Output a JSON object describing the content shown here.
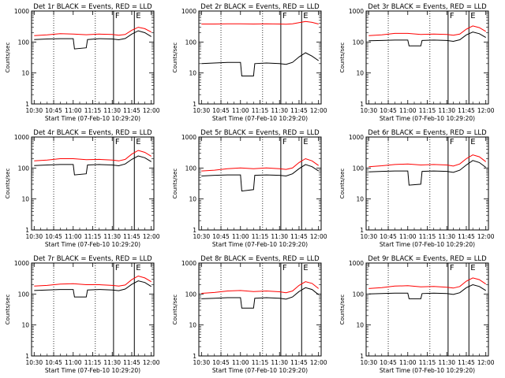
{
  "figure": {
    "xtick_labels": [
      "10:30",
      "10:45",
      "11:00",
      "11:15",
      "11:30",
      "11:45",
      "12:00"
    ],
    "xlabel": "Start Time (07-Feb-10 10:29:20)",
    "ylabel": "Counts/sec",
    "ytick_labels": [
      "1",
      "10",
      "100",
      "1000"
    ],
    "markers": [
      "F",
      "E"
    ]
  },
  "colors": {
    "events": "#000000",
    "lld": "#ff0000",
    "axes": "#000000"
  },
  "chart_data": [
    {
      "type": "line",
      "title": "Det 1r BLACK = Events, RED = LLD",
      "xlabel": "Start Time (07-Feb-10 10:29:20)",
      "ylabel": "Counts/sec",
      "xlim_min": [
        -2,
        92
      ],
      "ylim": [
        1,
        1000
      ],
      "yscale": "log",
      "dotted_vlines_min": [
        15,
        47
      ],
      "solid_vlines_min": [
        61,
        77
      ],
      "vline_labels": {
        "61": "F",
        "77": "E"
      },
      "series": [
        {
          "name": "Events",
          "color": "#000000",
          "x": [
            0,
            10,
            20,
            30,
            31,
            40,
            41,
            50,
            60,
            65,
            70,
            75,
            80,
            85,
            90
          ],
          "values": [
            120,
            125,
            128,
            128,
            60,
            65,
            120,
            128,
            125,
            118,
            130,
            180,
            230,
            200,
            150
          ]
        },
        {
          "name": "LLD",
          "color": "#ff0000",
          "x": [
            0,
            10,
            20,
            30,
            40,
            50,
            60,
            65,
            70,
            75,
            80,
            85,
            90
          ],
          "values": [
            160,
            170,
            185,
            180,
            172,
            180,
            175,
            165,
            175,
            240,
            300,
            270,
            210
          ]
        }
      ]
    },
    {
      "type": "line",
      "title": "Det 2r BLACK = Events, RED = LLD",
      "xlabel": "Start Time (07-Feb-10 10:29:20)",
      "ylabel": "Counts/sec",
      "xlim_min": [
        -2,
        92
      ],
      "ylim": [
        1,
        1000
      ],
      "yscale": "log",
      "dotted_vlines_min": [
        15,
        47
      ],
      "solid_vlines_min": [
        61,
        77
      ],
      "vline_labels": {
        "61": "F",
        "77": "E"
      },
      "series": [
        {
          "name": "Events",
          "color": "#000000",
          "x": [
            0,
            10,
            20,
            30,
            31,
            40,
            41,
            50,
            60,
            65,
            70,
            75,
            80,
            85,
            90
          ],
          "values": [
            20,
            21,
            22,
            22,
            8,
            8,
            20,
            21,
            20,
            19,
            22,
            33,
            45,
            35,
            25
          ]
        },
        {
          "name": "LLD",
          "color": "#ff0000",
          "x": [
            0,
            10,
            20,
            30,
            40,
            50,
            60,
            65,
            70,
            75,
            80,
            85,
            90
          ],
          "values": [
            380,
            380,
            385,
            385,
            380,
            385,
            380,
            375,
            385,
            420,
            460,
            430,
            380
          ]
        }
      ]
    },
    {
      "type": "line",
      "title": "Det 3r BLACK = Events, RED = LLD",
      "xlabel": "Start Time (07-Feb-10 10:29:20)",
      "ylabel": "Counts/sec",
      "xlim_min": [
        -2,
        92
      ],
      "ylim": [
        1,
        1000
      ],
      "yscale": "log",
      "dotted_vlines_min": [
        15,
        47
      ],
      "solid_vlines_min": [
        61,
        77
      ],
      "vline_labels": {
        "61": "F",
        "77": "E"
      },
      "series": [
        {
          "name": "Events",
          "color": "#000000",
          "x": [
            0,
            10,
            20,
            30,
            31,
            40,
            41,
            50,
            60,
            65,
            70,
            75,
            80,
            85,
            90
          ],
          "values": [
            110,
            112,
            115,
            115,
            75,
            75,
            112,
            115,
            112,
            105,
            118,
            170,
            210,
            185,
            140
          ]
        },
        {
          "name": "LLD",
          "color": "#ff0000",
          "x": [
            0,
            10,
            20,
            30,
            40,
            50,
            60,
            65,
            70,
            75,
            80,
            85,
            90
          ],
          "values": [
            160,
            170,
            190,
            190,
            175,
            180,
            175,
            165,
            180,
            260,
            330,
            290,
            220
          ]
        }
      ]
    },
    {
      "type": "line",
      "title": "Det 4r BLACK = Events, RED = LLD",
      "xlabel": "Start Time (07-Feb-10 10:29:20)",
      "ylabel": "Counts/sec",
      "xlim_min": [
        -2,
        92
      ],
      "ylim": [
        1,
        1000
      ],
      "yscale": "log",
      "dotted_vlines_min": [
        15,
        47
      ],
      "solid_vlines_min": [
        61,
        77
      ],
      "vline_labels": {
        "61": "F",
        "77": "E"
      },
      "series": [
        {
          "name": "Events",
          "color": "#000000",
          "x": [
            0,
            10,
            20,
            30,
            31,
            40,
            41,
            50,
            60,
            65,
            70,
            75,
            80,
            85,
            90
          ],
          "values": [
            120,
            125,
            130,
            130,
            60,
            65,
            125,
            130,
            125,
            118,
            135,
            190,
            245,
            215,
            160
          ]
        },
        {
          "name": "LLD",
          "color": "#ff0000",
          "x": [
            0,
            10,
            20,
            30,
            40,
            50,
            60,
            65,
            70,
            75,
            80,
            85,
            90
          ],
          "values": [
            170,
            180,
            200,
            200,
            185,
            190,
            180,
            170,
            190,
            280,
            370,
            320,
            240
          ]
        }
      ]
    },
    {
      "type": "line",
      "title": "Det 5r BLACK = Events, RED = LLD",
      "xlabel": "Start Time (07-Feb-10 10:29:20)",
      "ylabel": "Counts/sec",
      "xlim_min": [
        -2,
        92
      ],
      "ylim": [
        1,
        1000
      ],
      "yscale": "log",
      "dotted_vlines_min": [
        15,
        47
      ],
      "solid_vlines_min": [
        61,
        77
      ],
      "vline_labels": {
        "61": "F",
        "77": "E"
      },
      "series": [
        {
          "name": "Events",
          "color": "#000000",
          "x": [
            0,
            10,
            20,
            30,
            31,
            40,
            41,
            50,
            60,
            65,
            70,
            75,
            80,
            85,
            90
          ],
          "values": [
            55,
            58,
            60,
            60,
            18,
            20,
            58,
            60,
            58,
            55,
            65,
            95,
            130,
            110,
            80
          ]
        },
        {
          "name": "LLD",
          "color": "#ff0000",
          "x": [
            0,
            10,
            20,
            30,
            40,
            50,
            60,
            65,
            70,
            75,
            80,
            85,
            90
          ],
          "values": [
            80,
            85,
            95,
            100,
            95,
            100,
            95,
            90,
            100,
            150,
            200,
            170,
            120
          ]
        }
      ]
    },
    {
      "type": "line",
      "title": "Det 6r BLACK = Events, RED = LLD",
      "xlabel": "Start Time (07-Feb-10 10:29:20)",
      "ylabel": "Counts/sec",
      "xlim_min": [
        -2,
        92
      ],
      "ylim": [
        1,
        1000
      ],
      "yscale": "log",
      "dotted_vlines_min": [
        15,
        47
      ],
      "solid_vlines_min": [
        61,
        77
      ],
      "vline_labels": {
        "61": "F",
        "77": "E"
      },
      "series": [
        {
          "name": "Events",
          "color": "#000000",
          "x": [
            0,
            10,
            20,
            30,
            31,
            40,
            41,
            50,
            60,
            65,
            70,
            75,
            80,
            85,
            90
          ],
          "values": [
            75,
            78,
            80,
            80,
            28,
            30,
            78,
            80,
            78,
            72,
            85,
            125,
            175,
            150,
            105
          ]
        },
        {
          "name": "LLD",
          "color": "#ff0000",
          "x": [
            0,
            10,
            20,
            30,
            40,
            50,
            60,
            65,
            70,
            75,
            80,
            85,
            90
          ],
          "values": [
            110,
            118,
            130,
            135,
            125,
            130,
            125,
            115,
            135,
            200,
            265,
            230,
            160
          ]
        }
      ]
    },
    {
      "type": "line",
      "title": "Det 7r BLACK = Events, RED = LLD",
      "xlabel": "Start Time (07-Feb-10 10:29:20)",
      "ylabel": "Counts/sec",
      "xlim_min": [
        -2,
        92
      ],
      "ylim": [
        1,
        1000
      ],
      "yscale": "log",
      "dotted_vlines_min": [
        15,
        47
      ],
      "solid_vlines_min": [
        61,
        77
      ],
      "vline_labels": {
        "61": "F",
        "77": "E"
      },
      "series": [
        {
          "name": "Events",
          "color": "#000000",
          "x": [
            0,
            10,
            20,
            30,
            31,
            40,
            41,
            50,
            60,
            65,
            70,
            75,
            80,
            85,
            90
          ],
          "values": [
            130,
            135,
            140,
            140,
            80,
            80,
            135,
            140,
            135,
            128,
            145,
            205,
            265,
            235,
            175
          ]
        },
        {
          "name": "LLD",
          "color": "#ff0000",
          "x": [
            0,
            10,
            20,
            30,
            40,
            50,
            60,
            65,
            70,
            75,
            80,
            85,
            90
          ],
          "values": [
            180,
            190,
            210,
            215,
            200,
            200,
            190,
            180,
            195,
            290,
            380,
            330,
            250
          ]
        }
      ]
    },
    {
      "type": "line",
      "title": "Det 8r BLACK = Events, RED = LLD",
      "xlabel": "Start Time (07-Feb-10 10:29:20)",
      "ylabel": "Counts/sec",
      "xlim_min": [
        -2,
        92
      ],
      "ylim": [
        1,
        1000
      ],
      "yscale": "log",
      "dotted_vlines_min": [
        15,
        47
      ],
      "solid_vlines_min": [
        61,
        77
      ],
      "vline_labels": {
        "61": "F",
        "77": "E"
      },
      "series": [
        {
          "name": "Events",
          "color": "#000000",
          "x": [
            0,
            10,
            20,
            30,
            31,
            40,
            41,
            50,
            60,
            65,
            70,
            75,
            80,
            85,
            90
          ],
          "values": [
            70,
            73,
            76,
            76,
            35,
            35,
            73,
            76,
            73,
            68,
            80,
            120,
            160,
            140,
            95
          ]
        },
        {
          "name": "LLD",
          "color": "#ff0000",
          "x": [
            0,
            10,
            20,
            30,
            40,
            50,
            60,
            65,
            70,
            75,
            80,
            85,
            90
          ],
          "values": [
            105,
            112,
            125,
            130,
            120,
            125,
            118,
            110,
            125,
            190,
            250,
            220,
            150
          ]
        }
      ]
    },
    {
      "type": "line",
      "title": "Det 9r BLACK = Events, RED = LLD",
      "xlabel": "Start Time (07-Feb-10 10:29:20)",
      "ylabel": "Counts/sec",
      "xlim_min": [
        -2,
        92
      ],
      "ylim": [
        1,
        1000
      ],
      "yscale": "log",
      "dotted_vlines_min": [
        15,
        47
      ],
      "solid_vlines_min": [
        61,
        77
      ],
      "vline_labels": {
        "61": "F",
        "77": "E"
      },
      "series": [
        {
          "name": "Events",
          "color": "#000000",
          "x": [
            0,
            10,
            20,
            30,
            31,
            40,
            41,
            50,
            60,
            65,
            70,
            75,
            80,
            85,
            90
          ],
          "values": [
            100,
            103,
            106,
            106,
            70,
            70,
            103,
            106,
            103,
            97,
            110,
            160,
            200,
            175,
            130
          ]
        },
        {
          "name": "LLD",
          "color": "#ff0000",
          "x": [
            0,
            10,
            20,
            30,
            40,
            50,
            60,
            65,
            70,
            75,
            80,
            85,
            90
          ],
          "values": [
            150,
            160,
            180,
            185,
            170,
            175,
            165,
            155,
            175,
            260,
            330,
            290,
            210
          ]
        }
      ]
    }
  ]
}
